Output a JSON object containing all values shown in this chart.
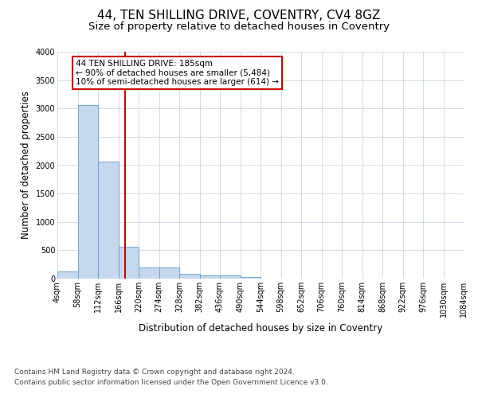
{
  "title": "44, TEN SHILLING DRIVE, COVENTRY, CV4 8GZ",
  "subtitle": "Size of property relative to detached houses in Coventry",
  "xlabel": "Distribution of detached houses by size in Coventry",
  "ylabel": "Number of detached properties",
  "bin_edges": [
    4,
    58,
    112,
    166,
    220,
    274,
    328,
    382,
    436,
    490,
    544,
    598,
    652,
    706,
    760,
    814,
    868,
    922,
    976,
    1030,
    1084
  ],
  "bar_heights": [
    130,
    3060,
    2060,
    560,
    195,
    195,
    80,
    55,
    50,
    35,
    0,
    0,
    0,
    0,
    0,
    0,
    0,
    0,
    0,
    0
  ],
  "bar_color": "#c5d8ed",
  "bar_edge_color": "#6699cc",
  "property_line_x": 185,
  "property_line_color": "#cc0000",
  "annotation_text": "44 TEN SHILLING DRIVE: 185sqm\n← 90% of detached houses are smaller (5,484)\n10% of semi-detached houses are larger (614) →",
  "annotation_box_color": "#cc0000",
  "annotation_text_color": "#000000",
  "annotation_bg": "#ffffff",
  "ylim": [
    0,
    4000
  ],
  "yticks": [
    0,
    500,
    1000,
    1500,
    2000,
    2500,
    3000,
    3500,
    4000
  ],
  "footer_line1": "Contains HM Land Registry data © Crown copyright and database right 2024.",
  "footer_line2": "Contains public sector information licensed under the Open Government Licence v3.0.",
  "bg_color": "#ffffff",
  "grid_color": "#c8d8e8",
  "title_fontsize": 11,
  "subtitle_fontsize": 9.5,
  "axis_label_fontsize": 8.5,
  "tick_fontsize": 7,
  "footer_fontsize": 6.5,
  "annotation_fontsize": 7.5
}
